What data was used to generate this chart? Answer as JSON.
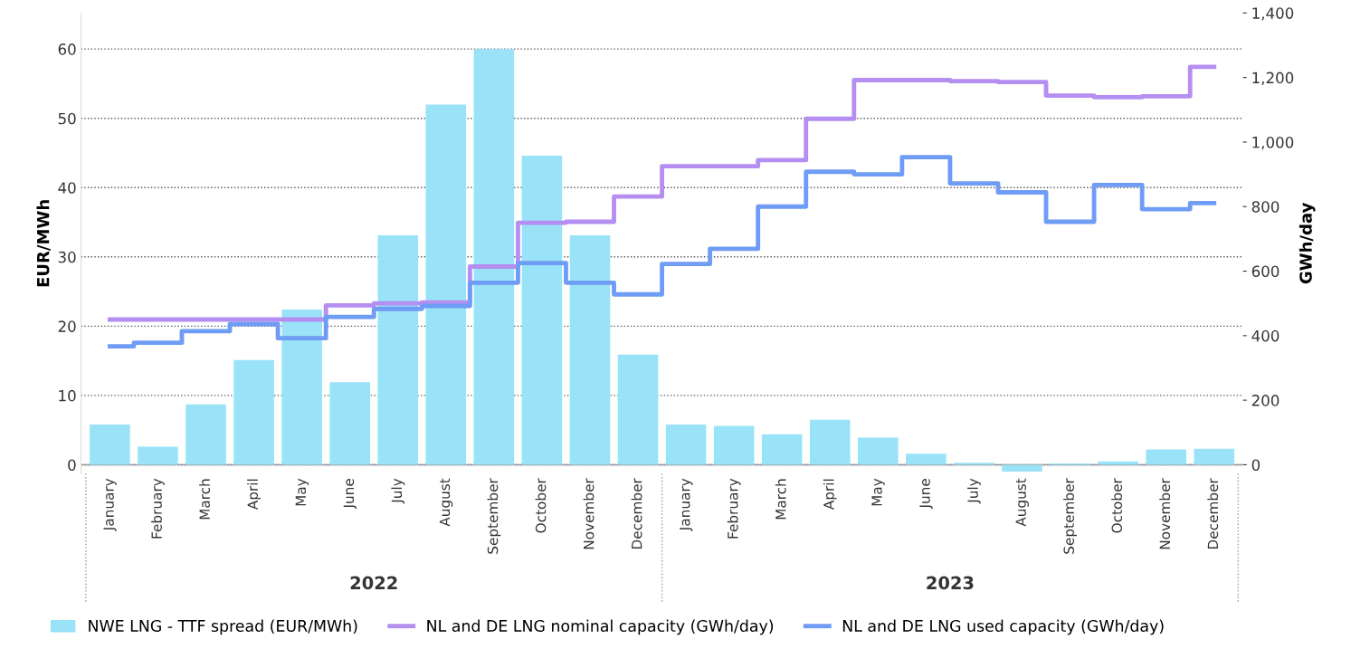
{
  "chart_data": {
    "type": "bar",
    "categories": [
      "January",
      "February",
      "March",
      "April",
      "May",
      "June",
      "July",
      "August",
      "September",
      "October",
      "November",
      "December",
      "January",
      "February",
      "March",
      "April",
      "May",
      "June",
      "July",
      "August",
      "September",
      "October",
      "November",
      "December"
    ],
    "annotations": [
      "2022",
      "2023"
    ],
    "ylabel": "EUR/MWh",
    "y2label": "GWh/day",
    "ylim": [
      -1.3,
      65.2
    ],
    "yticks": [
      0,
      10,
      20,
      30,
      40,
      50,
      60
    ],
    "y2lim": [
      -28,
      1400
    ],
    "y2ticks": [
      {
        "value": 0,
        "label": "0"
      },
      {
        "value": 200,
        "label": "200"
      },
      {
        "value": 400,
        "label": "400"
      },
      {
        "value": 600,
        "label": "600"
      },
      {
        "value": 800,
        "label": "800"
      },
      {
        "value": 1000,
        "label": "1,000"
      },
      {
        "value": 1200,
        "label": "1,200"
      },
      {
        "value": 1400,
        "label": "1,400"
      }
    ],
    "grid": "y",
    "legend": "bottom",
    "series": [
      {
        "name": "NWE LNG - TTF spread (EUR/MWh)",
        "color": "#99e2f7",
        "values": [
          5.8,
          2.6,
          8.7,
          15.1,
          22.4,
          11.9,
          33.1,
          52,
          60,
          44.6,
          33.1,
          15.9,
          5.8,
          5.6,
          4.4,
          6.5,
          3.9,
          1.6,
          0.3,
          -1.0,
          0.2,
          0.5,
          2.2,
          2.3
        ]
      },
      {
        "name": "NL and DE LNG nominal capacity (GWh/day)",
        "type": "step",
        "axis": "y2",
        "color": "#b48ef0",
        "values": [
          450,
          450,
          450,
          450,
          450,
          494,
          500,
          503,
          614,
          750,
          753,
          831,
          925,
          925,
          944,
          1072,
          1192,
          1192,
          1189,
          1186,
          1144,
          1139,
          1142,
          1233
        ]
      },
      {
        "name": "NL and DE LNG used capacity (GWh/day)",
        "type": "step",
        "axis": "y2",
        "color": "#6f9cf5",
        "values": [
          367,
          378,
          414,
          436,
          392,
          458,
          483,
          492,
          564,
          625,
          564,
          528,
          622,
          669,
          800,
          908,
          900,
          953,
          872,
          844,
          753,
          867,
          792,
          811
        ]
      }
    ]
  }
}
